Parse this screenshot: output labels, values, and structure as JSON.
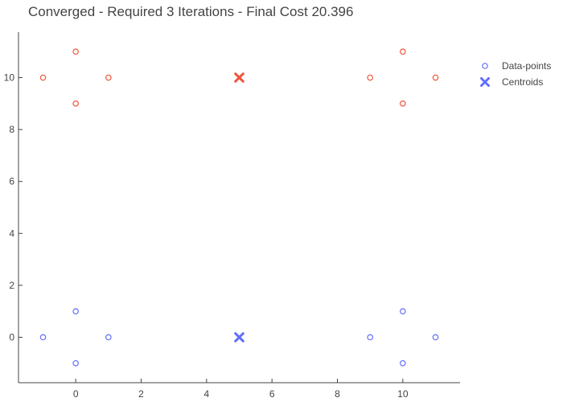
{
  "chart_data": {
    "type": "scatter",
    "title": "Converged - Required 3 Iterations - Final Cost 20.396",
    "xlabel": "",
    "ylabel": "",
    "xlim": [
      -1.75,
      11.75
    ],
    "ylim": [
      -1.75,
      11.75
    ],
    "x_ticks": [
      0,
      2,
      4,
      6,
      8,
      10
    ],
    "y_ticks": [
      0,
      2,
      4,
      6,
      8,
      10
    ],
    "grid": false,
    "legend_position": "top-right",
    "legend": [
      {
        "label": "Data-points",
        "symbol": "circle-open"
      },
      {
        "label": "Centroids",
        "symbol": "x"
      }
    ],
    "series": [
      {
        "name": "Data-points",
        "symbol": "circle-open",
        "points": [
          {
            "x": -1,
            "y": 10,
            "cluster": 1
          },
          {
            "x": 0,
            "y": 11,
            "cluster": 1
          },
          {
            "x": 0,
            "y": 9,
            "cluster": 1
          },
          {
            "x": 1,
            "y": 10,
            "cluster": 1
          },
          {
            "x": 9,
            "y": 10,
            "cluster": 1
          },
          {
            "x": 10,
            "y": 11,
            "cluster": 1
          },
          {
            "x": 10,
            "y": 9,
            "cluster": 1
          },
          {
            "x": 11,
            "y": 10,
            "cluster": 1
          },
          {
            "x": -1,
            "y": 0,
            "cluster": 0
          },
          {
            "x": 0,
            "y": 1,
            "cluster": 0
          },
          {
            "x": 0,
            "y": -1,
            "cluster": 0
          },
          {
            "x": 1,
            "y": 0,
            "cluster": 0
          },
          {
            "x": 9,
            "y": 0,
            "cluster": 0
          },
          {
            "x": 10,
            "y": 1,
            "cluster": 0
          },
          {
            "x": 10,
            "y": -1,
            "cluster": 0
          },
          {
            "x": 11,
            "y": 0,
            "cluster": 0
          }
        ]
      },
      {
        "name": "Centroids",
        "symbol": "x",
        "points": [
          {
            "x": 5,
            "y": 10,
            "cluster": 1
          },
          {
            "x": 5,
            "y": 0,
            "cluster": 0
          }
        ]
      }
    ],
    "colors": {
      "cluster_0": "#636efa",
      "cluster_1": "#ef553b",
      "axis": "#444444",
      "legend_marker": "#636efa"
    }
  }
}
